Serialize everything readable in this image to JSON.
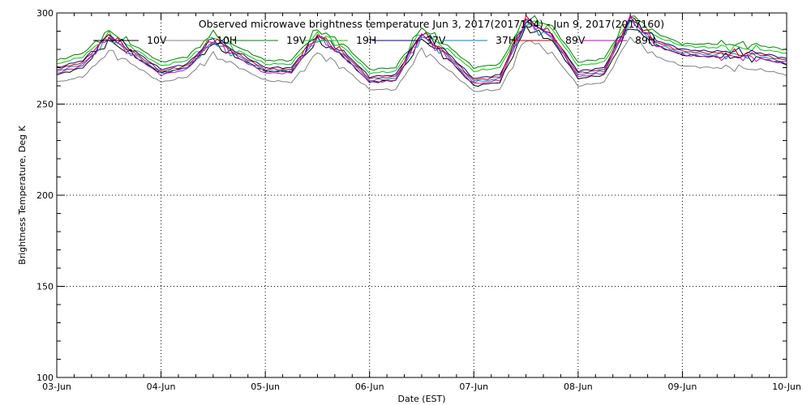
{
  "chart_data": {
    "type": "line",
    "title": "Observed microwave brightness temperature Jun  3, 2017(2017154) - Jun  9, 2017(2017160)",
    "xlabel": "Date (EST)",
    "ylabel": "Brightness Temperature, Deg K",
    "ylim": [
      100,
      300
    ],
    "xlim": [
      0,
      7
    ],
    "grid": true,
    "legend_position": "top",
    "x_tick_labels": [
      "03-Jun",
      "04-Jun",
      "05-Jun",
      "06-Jun",
      "07-Jun",
      "08-Jun",
      "09-Jun",
      "10-Jun"
    ],
    "y_tick_labels": [
      "100",
      "150",
      "200",
      "250",
      "300"
    ],
    "x": [
      0,
      0.25,
      0.5,
      0.75,
      1,
      1.25,
      1.5,
      1.75,
      2,
      2.25,
      2.5,
      2.75,
      3,
      3.25,
      3.5,
      3.75,
      4,
      4.25,
      4.5,
      4.75,
      5,
      5.25,
      5.5,
      5.75,
      6,
      6.25,
      6.5,
      6.75,
      7
    ],
    "series": [
      {
        "name": "10V",
        "color": "#000000",
        "values": [
          266,
          270,
          285,
          276,
          267,
          270,
          283,
          275,
          268,
          268,
          285,
          276,
          262,
          263,
          286,
          275,
          260,
          262,
          292,
          285,
          264,
          266,
          293,
          282,
          277,
          276,
          276,
          275,
          272
        ]
      },
      {
        "name": "10H",
        "color": "#808080",
        "values": [
          262,
          265,
          279,
          271,
          262,
          265,
          277,
          270,
          263,
          262,
          278,
          270,
          258,
          258,
          280,
          269,
          257,
          258,
          286,
          278,
          260,
          262,
          287,
          276,
          271,
          270,
          270,
          269,
          266
        ]
      },
      {
        "name": "19V",
        "color": "#008000",
        "values": [
          274,
          278,
          290,
          282,
          273,
          276,
          289,
          281,
          274,
          274,
          291,
          283,
          269,
          270,
          292,
          282,
          270,
          272,
          298,
          293,
          273,
          275,
          299,
          289,
          283,
          283,
          283,
          282,
          280
        ]
      },
      {
        "name": "19H",
        "color": "#00cc00",
        "values": [
          272,
          276,
          288,
          280,
          271,
          274,
          287,
          279,
          272,
          272,
          289,
          281,
          267,
          268,
          290,
          280,
          268,
          270,
          296,
          291,
          271,
          273,
          297,
          287,
          282,
          281,
          281,
          280,
          278
        ]
      },
      {
        "name": "37V",
        "color": "#000080",
        "values": [
          270,
          274,
          288,
          279,
          269,
          272,
          286,
          278,
          270,
          270,
          288,
          279,
          265,
          266,
          289,
          278,
          264,
          266,
          296,
          288,
          268,
          270,
          297,
          285,
          280,
          279,
          279,
          278,
          275
        ]
      },
      {
        "name": "37H",
        "color": "#0080c0",
        "values": [
          268,
          272,
          286,
          277,
          267,
          270,
          284,
          276,
          268,
          268,
          286,
          277,
          263,
          264,
          287,
          276,
          262,
          264,
          294,
          286,
          266,
          268,
          295,
          283,
          278,
          277,
          277,
          276,
          273
        ]
      },
      {
        "name": "89V",
        "color": "#cc0000",
        "values": [
          269,
          273,
          288,
          278,
          268,
          271,
          286,
          277,
          269,
          269,
          288,
          278,
          264,
          265,
          289,
          277,
          263,
          265,
          297,
          288,
          267,
          269,
          298,
          284,
          279,
          278,
          278,
          277,
          274
        ]
      },
      {
        "name": "89H",
        "color": "#cc00cc",
        "values": [
          267,
          271,
          287,
          276,
          266,
          269,
          285,
          275,
          267,
          267,
          287,
          276,
          262,
          263,
          288,
          275,
          261,
          263,
          296,
          287,
          265,
          267,
          297,
          282,
          277,
          276,
          276,
          275,
          272
        ]
      }
    ]
  }
}
